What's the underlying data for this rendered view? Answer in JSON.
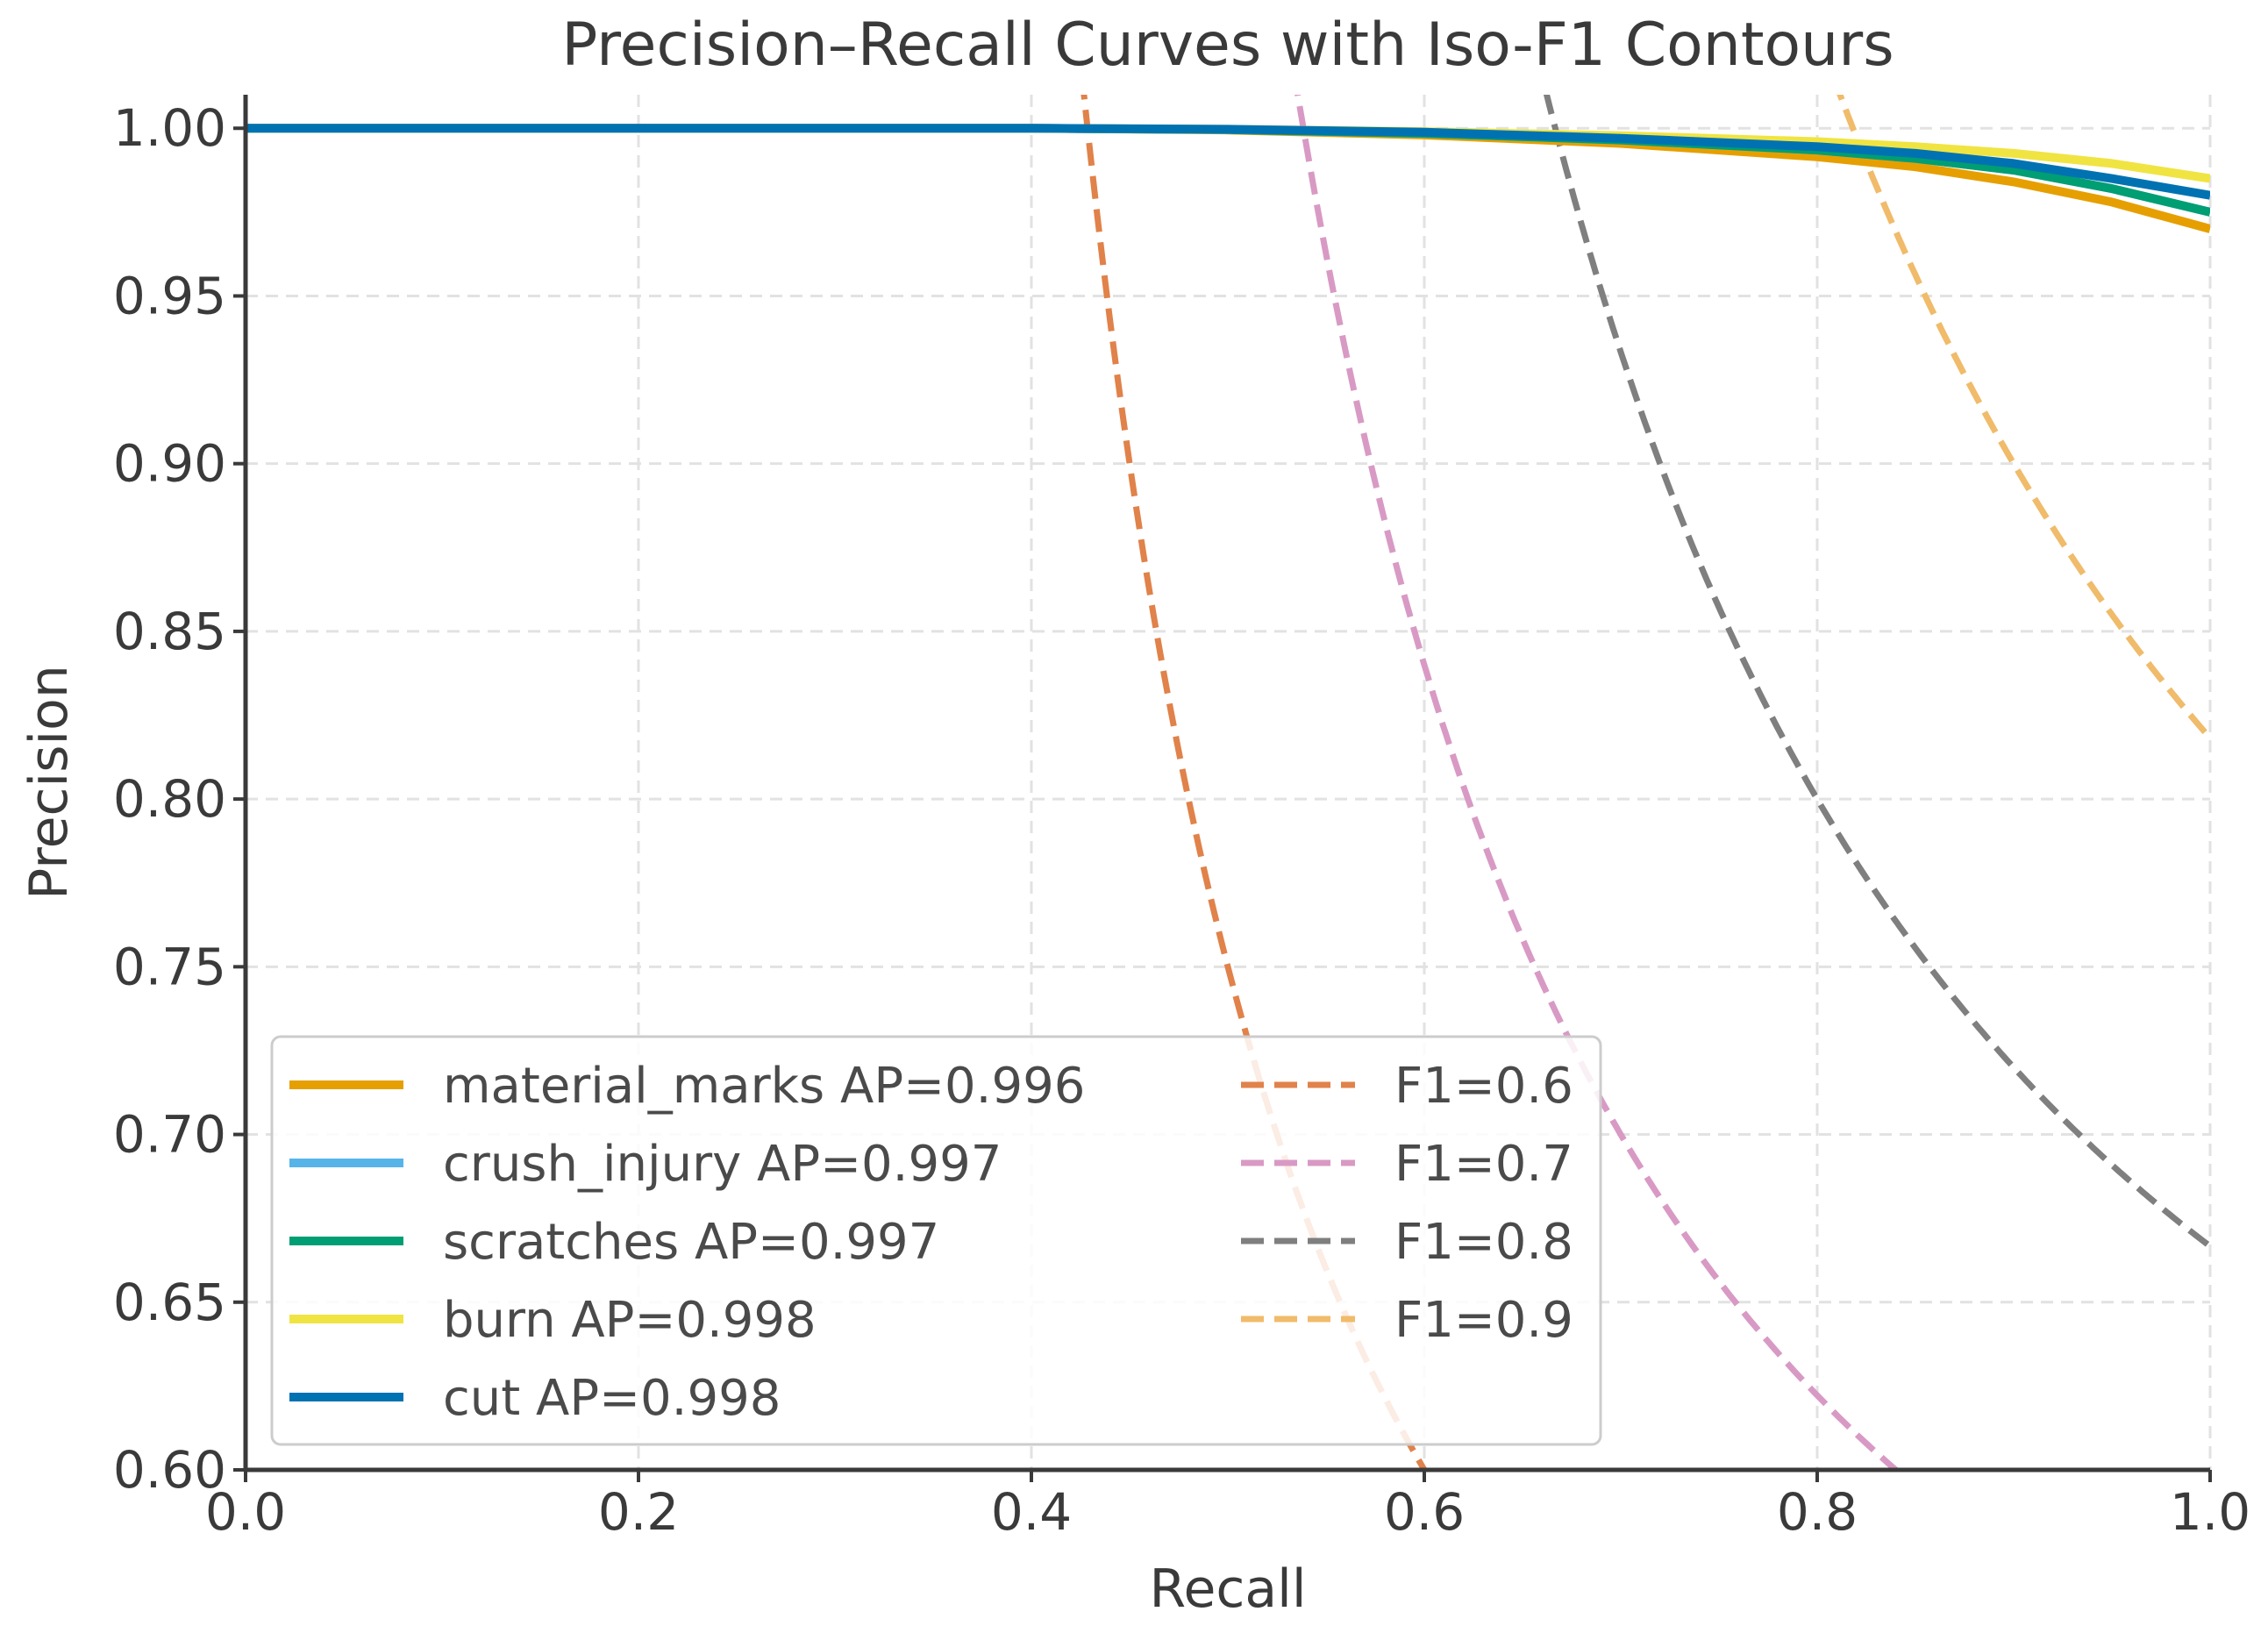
{
  "chart_data": {
    "type": "line",
    "title": "Precision–Recall Curves with Iso-F1 Contours",
    "xlabel": "Recall",
    "ylabel": "Precision",
    "xlim": [
      0.0,
      1.0
    ],
    "ylim": [
      0.6,
      1.01
    ],
    "grid": true,
    "legend_position": "lower-left",
    "x_ticks": [
      {
        "value": 0.0,
        "label": "0.0"
      },
      {
        "value": 0.2,
        "label": "0.2"
      },
      {
        "value": 0.4,
        "label": "0.4"
      },
      {
        "value": 0.6,
        "label": "0.6"
      },
      {
        "value": 0.8,
        "label": "0.8"
      },
      {
        "value": 1.0,
        "label": "1.0"
      }
    ],
    "y_ticks": [
      {
        "value": 0.6,
        "label": "0.60"
      },
      {
        "value": 0.65,
        "label": "0.65"
      },
      {
        "value": 0.7,
        "label": "0.70"
      },
      {
        "value": 0.75,
        "label": "0.75"
      },
      {
        "value": 0.8,
        "label": "0.80"
      },
      {
        "value": 0.85,
        "label": "0.85"
      },
      {
        "value": 0.9,
        "label": "0.90"
      },
      {
        "value": 0.95,
        "label": "0.95"
      },
      {
        "value": 1.0,
        "label": "1.00"
      }
    ],
    "series": [
      {
        "name": "material_marks",
        "ap": "AP=0.996",
        "label": "material_marks AP=0.996",
        "color": "#E69F00",
        "x": [
          0.0,
          0.2,
          0.4,
          0.5,
          0.6,
          0.7,
          0.8,
          0.85,
          0.9,
          0.95,
          1.0
        ],
        "y": [
          1.0,
          1.0,
          1.0,
          0.9995,
          0.998,
          0.9955,
          0.9915,
          0.9885,
          0.984,
          0.978,
          0.97
        ]
      },
      {
        "name": "crush_injury",
        "ap": "AP=0.997",
        "label": "crush_injury AP=0.997",
        "color": "#56B4E9",
        "x": [
          0.0,
          0.2,
          0.4,
          0.5,
          0.6,
          0.7,
          0.8,
          0.85,
          0.9,
          0.95,
          1.0
        ],
        "y": [
          1.0,
          1.0,
          1.0,
          0.9996,
          0.9985,
          0.9965,
          0.9935,
          0.991,
          0.9875,
          0.982,
          0.975
        ]
      },
      {
        "name": "scratches",
        "ap": "AP=0.997",
        "label": "scratches AP=0.997",
        "color": "#009E73",
        "x": [
          0.0,
          0.2,
          0.4,
          0.5,
          0.6,
          0.7,
          0.8,
          0.85,
          0.9,
          0.95,
          1.0
        ],
        "y": [
          1.0,
          1.0,
          1.0,
          0.9996,
          0.9985,
          0.9965,
          0.9935,
          0.991,
          0.9875,
          0.982,
          0.975
        ]
      },
      {
        "name": "burn",
        "ap": "AP=0.998",
        "label": "burn AP=0.998",
        "color": "#F0E442",
        "x": [
          0.0,
          0.2,
          0.4,
          0.5,
          0.6,
          0.7,
          0.8,
          0.85,
          0.9,
          0.95,
          1.0
        ],
        "y": [
          1.0,
          1.0,
          1.0,
          0.9997,
          0.999,
          0.9978,
          0.996,
          0.9945,
          0.9925,
          0.9895,
          0.985
        ]
      },
      {
        "name": "cut",
        "ap": "AP=0.998",
        "label": "cut AP=0.998",
        "color": "#0072B2",
        "x": [
          0.0,
          0.2,
          0.4,
          0.5,
          0.6,
          0.7,
          0.8,
          0.85,
          0.9,
          0.95,
          1.0
        ],
        "y": [
          1.0,
          1.0,
          1.0,
          0.9997,
          0.9988,
          0.997,
          0.9945,
          0.9925,
          0.9895,
          0.985,
          0.98
        ]
      }
    ],
    "iso_f1": [
      {
        "f1": 0.6,
        "label": "F1=0.6",
        "color": "#E0824A"
      },
      {
        "f1": 0.7,
        "label": "F1=0.7",
        "color": "#D89AC4"
      },
      {
        "f1": 0.8,
        "label": "F1=0.8",
        "color": "#7F7F7F"
      },
      {
        "f1": 0.9,
        "label": "F1=0.9",
        "color": "#F0BB6A"
      }
    ]
  }
}
